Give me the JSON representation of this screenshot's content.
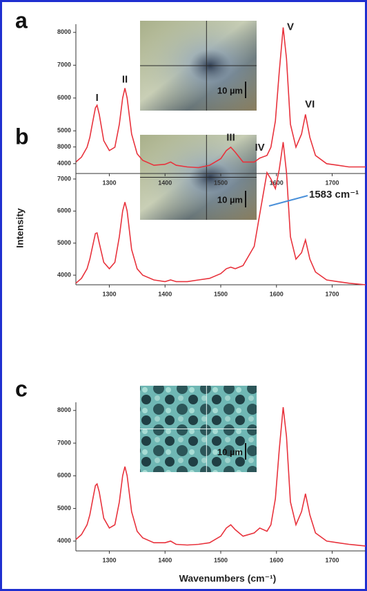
{
  "figure": {
    "ylabel": "Intensity",
    "xlabel": "Wavenumbers (cm⁻¹)"
  },
  "chart_data": [
    {
      "type": "line",
      "panel": "a",
      "color": "#e8323c",
      "x": [
        1240,
        1250,
        1260,
        1265,
        1270,
        1275,
        1278,
        1282,
        1290,
        1300,
        1310,
        1318,
        1324,
        1328,
        1332,
        1340,
        1350,
        1360,
        1380,
        1400,
        1410,
        1420,
        1440,
        1460,
        1480,
        1500,
        1510,
        1518,
        1526,
        1540,
        1560,
        1570,
        1583,
        1590,
        1598,
        1605,
        1612,
        1618,
        1625,
        1635,
        1645,
        1652,
        1660,
        1670,
        1690,
        1710,
        1730,
        1760
      ],
      "values": [
        4050,
        4200,
        4500,
        4800,
        5250,
        5700,
        5780,
        5500,
        4700,
        4400,
        4500,
        5200,
        6000,
        6300,
        6000,
        4900,
        4300,
        4100,
        3950,
        3980,
        4050,
        3950,
        3900,
        3880,
        3950,
        4150,
        4400,
        4500,
        4350,
        4050,
        4050,
        4170,
        4250,
        4500,
        5300,
        6800,
        8150,
        7200,
        5200,
        4500,
        4900,
        5500,
        4800,
        4250,
        4000,
        3950,
        3900,
        3900
      ],
      "annotations": [
        "I",
        "II",
        "III",
        "IV",
        "V",
        "VI"
      ],
      "inset_scale": "10 µm",
      "xlim": [
        1240,
        1760
      ],
      "ylim": [
        3700,
        8250
      ],
      "xticks": [
        1300,
        1400,
        1500,
        1600,
        1700
      ],
      "yticks": [
        4000,
        5000,
        6000,
        7000,
        8000
      ]
    },
    {
      "type": "line",
      "panel": "b",
      "color": "#e8323c",
      "x": [
        1240,
        1250,
        1260,
        1265,
        1270,
        1275,
        1278,
        1282,
        1290,
        1300,
        1310,
        1318,
        1324,
        1328,
        1332,
        1340,
        1350,
        1360,
        1380,
        1400,
        1410,
        1420,
        1440,
        1460,
        1480,
        1500,
        1510,
        1518,
        1526,
        1540,
        1560,
        1570,
        1583,
        1590,
        1598,
        1605,
        1612,
        1618,
        1625,
        1635,
        1645,
        1652,
        1660,
        1670,
        1690,
        1710,
        1730,
        1760
      ],
      "values": [
        3750,
        3900,
        4200,
        4500,
        4900,
        5300,
        5320,
        5000,
        4400,
        4200,
        4400,
        5200,
        6000,
        6280,
        6000,
        4800,
        4200,
        4000,
        3850,
        3800,
        3850,
        3800,
        3800,
        3850,
        3900,
        4050,
        4200,
        4250,
        4200,
        4300,
        4900,
        5900,
        7200,
        7000,
        6700,
        7300,
        8150,
        7200,
        5200,
        4500,
        4700,
        5100,
        4500,
        4100,
        3850,
        3800,
        3750,
        3700
      ],
      "annotations": [
        "1583 cm⁻¹"
      ],
      "inset_scale": "10 µm",
      "xlim": [
        1240,
        1760
      ],
      "ylim": [
        3700,
        8250
      ],
      "xticks": [
        1300,
        1400,
        1500,
        1600,
        1700
      ],
      "yticks": [
        4000,
        5000,
        6000,
        7000,
        8000
      ]
    },
    {
      "type": "line",
      "panel": "c",
      "color": "#e8323c",
      "x": [
        1240,
        1250,
        1260,
        1265,
        1270,
        1275,
        1278,
        1282,
        1290,
        1300,
        1310,
        1318,
        1324,
        1328,
        1332,
        1340,
        1350,
        1360,
        1380,
        1400,
        1410,
        1420,
        1440,
        1460,
        1480,
        1500,
        1510,
        1518,
        1526,
        1540,
        1560,
        1570,
        1583,
        1590,
        1598,
        1605,
        1612,
        1618,
        1625,
        1635,
        1645,
        1652,
        1660,
        1670,
        1690,
        1710,
        1730,
        1760
      ],
      "values": [
        4050,
        4200,
        4500,
        4800,
        5250,
        5700,
        5750,
        5500,
        4700,
        4400,
        4500,
        5200,
        6000,
        6280,
        6000,
        4900,
        4300,
        4100,
        3950,
        3950,
        4000,
        3900,
        3880,
        3900,
        3950,
        4150,
        4400,
        4500,
        4350,
        4150,
        4250,
        4400,
        4300,
        4500,
        5300,
        6800,
        8100,
        7200,
        5200,
        4500,
        4900,
        5450,
        4800,
        4250,
        4000,
        3950,
        3900,
        3850
      ],
      "annotations": [],
      "inset_scale": "10 µm",
      "xlim": [
        1240,
        1760
      ],
      "ylim": [
        3700,
        8250
      ],
      "xticks": [
        1300,
        1400,
        1500,
        1600,
        1700
      ],
      "yticks": [
        4000,
        5000,
        6000,
        7000,
        8000
      ]
    }
  ]
}
